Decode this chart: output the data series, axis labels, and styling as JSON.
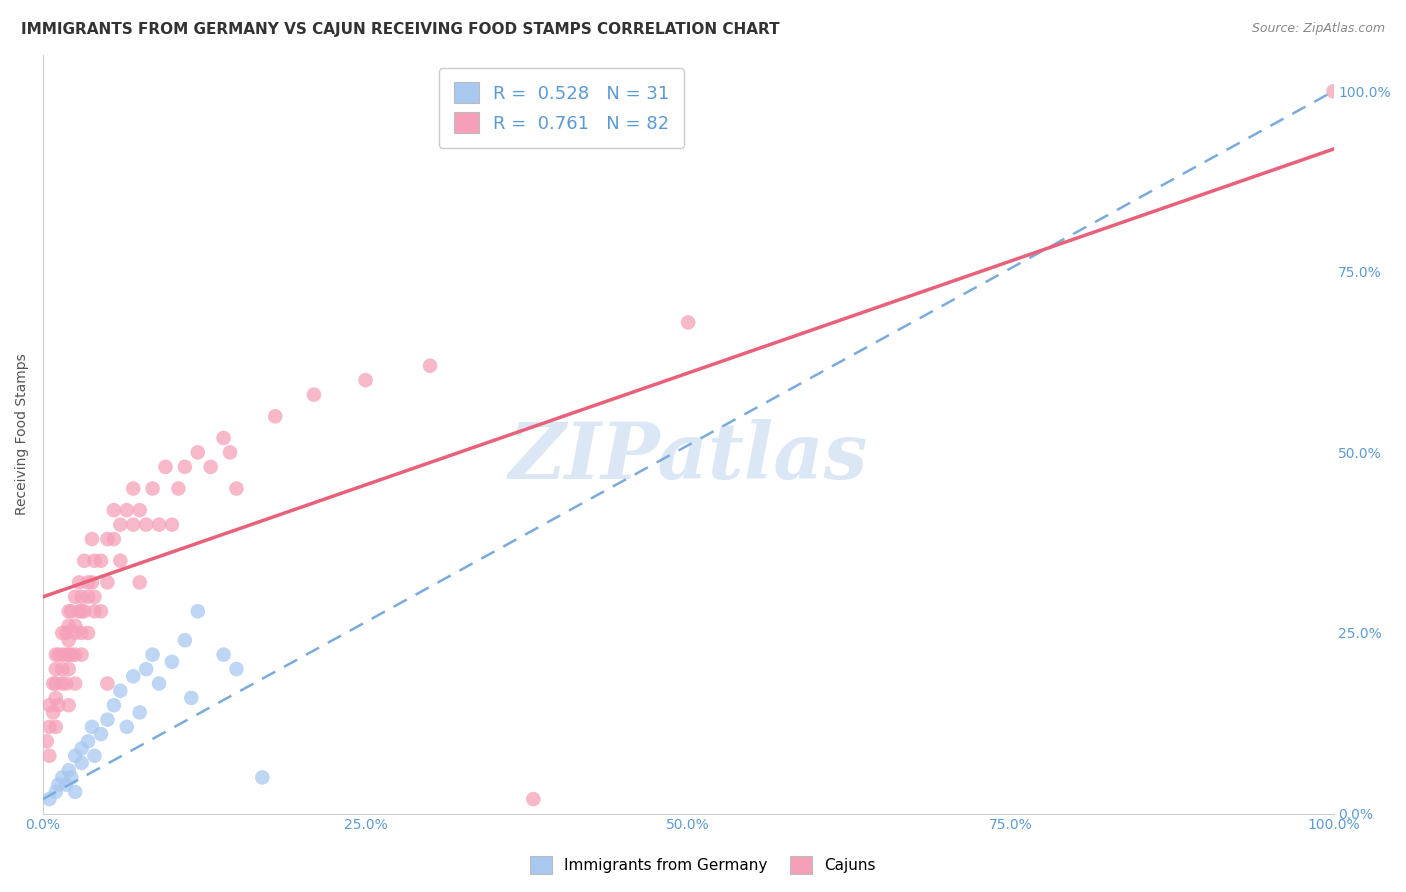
{
  "title": "IMMIGRANTS FROM GERMANY VS CAJUN RECEIVING FOOD STAMPS CORRELATION CHART",
  "source": "Source: ZipAtlas.com",
  "xlabel": "",
  "ylabel": "Receiving Food Stamps",
  "xlim": [
    0,
    100
  ],
  "ylim": [
    0,
    105
  ],
  "x_ticks": [
    0,
    25,
    50,
    75,
    100
  ],
  "x_tick_labels": [
    "0.0%",
    "25.0%",
    "50.0%",
    "75.0%",
    "100.0%"
  ],
  "y_ticks": [
    0,
    25,
    50,
    75,
    100
  ],
  "y_tick_labels": [
    "0.0%",
    "25.0%",
    "50.0%",
    "75.0%",
    "100.0%"
  ],
  "blue_color": "#A8C8F0",
  "pink_color": "#F5A0B8",
  "blue_line_color": "#7AABDC",
  "pink_line_color": "#E8607A",
  "legend_R_blue": "0.528",
  "legend_N_blue": "31",
  "legend_R_pink": "0.761",
  "legend_N_pink": "82",
  "legend_label_blue": "Immigrants from Germany",
  "legend_label_pink": "Cajuns",
  "watermark": "ZIPatlas",
  "blue_scatter_x": [
    0.5,
    1.0,
    1.2,
    1.5,
    1.8,
    2.0,
    2.2,
    2.5,
    2.5,
    3.0,
    3.0,
    3.5,
    3.8,
    4.0,
    4.5,
    5.0,
    5.5,
    6.0,
    6.5,
    7.0,
    7.5,
    8.0,
    8.5,
    9.0,
    10.0,
    11.0,
    11.5,
    12.0,
    14.0,
    15.0,
    17.0
  ],
  "blue_scatter_y": [
    2,
    3,
    4,
    5,
    4,
    6,
    5,
    8,
    3,
    7,
    9,
    10,
    12,
    8,
    11,
    13,
    15,
    17,
    12,
    19,
    14,
    20,
    22,
    18,
    21,
    24,
    16,
    28,
    22,
    20,
    5
  ],
  "pink_scatter_x": [
    0.3,
    0.5,
    0.5,
    0.5,
    0.8,
    0.8,
    1.0,
    1.0,
    1.0,
    1.0,
    1.0,
    1.2,
    1.2,
    1.5,
    1.5,
    1.5,
    1.5,
    1.8,
    1.8,
    1.8,
    2.0,
    2.0,
    2.0,
    2.0,
    2.0,
    2.0,
    2.2,
    2.2,
    2.5,
    2.5,
    2.5,
    2.5,
    2.5,
    2.8,
    2.8,
    3.0,
    3.0,
    3.0,
    3.0,
    3.2,
    3.2,
    3.5,
    3.5,
    3.5,
    3.8,
    3.8,
    4.0,
    4.0,
    4.0,
    4.5,
    4.5,
    5.0,
    5.0,
    5.0,
    5.5,
    5.5,
    6.0,
    6.0,
    6.5,
    7.0,
    7.0,
    7.5,
    7.5,
    8.0,
    8.5,
    9.0,
    9.5,
    10.0,
    10.5,
    11.0,
    12.0,
    13.0,
    14.0,
    14.5,
    15.0,
    18.0,
    21.0,
    25.0,
    30.0,
    38.0,
    50.0,
    100.0
  ],
  "pink_scatter_y": [
    10,
    12,
    15,
    8,
    14,
    18,
    16,
    20,
    22,
    18,
    12,
    15,
    22,
    18,
    22,
    25,
    20,
    22,
    25,
    18,
    22,
    26,
    20,
    28,
    15,
    24,
    22,
    28,
    25,
    22,
    30,
    26,
    18,
    28,
    32,
    25,
    30,
    28,
    22,
    28,
    35,
    30,
    32,
    25,
    32,
    38,
    30,
    28,
    35,
    35,
    28,
    32,
    38,
    18,
    38,
    42,
    40,
    35,
    42,
    40,
    45,
    42,
    32,
    40,
    45,
    40,
    48,
    40,
    45,
    48,
    50,
    48,
    52,
    50,
    45,
    55,
    58,
    60,
    62,
    2,
    68,
    100
  ],
  "background_color": "#ffffff",
  "grid_color": "#E0E0E8",
  "title_fontsize": 11,
  "axis_tick_color": "#5B9BD5",
  "axis_tick_fontsize": 10,
  "pink_line_intercept": 30,
  "pink_line_slope": 0.62,
  "blue_line_intercept": 2,
  "blue_line_slope": 0.98
}
